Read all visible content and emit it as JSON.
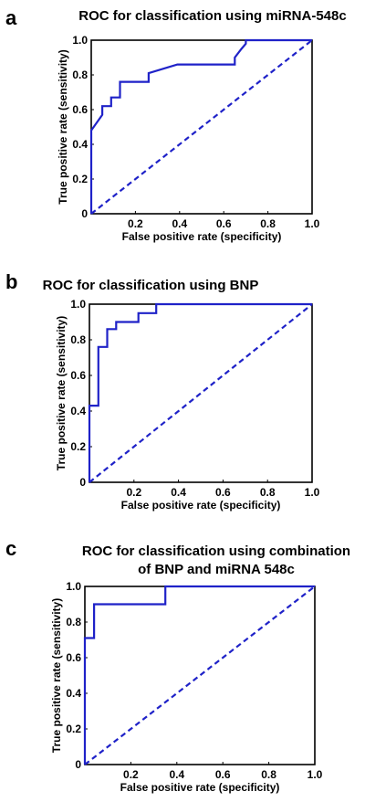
{
  "colors": {
    "roc": "#1f22c8",
    "chance": "#1f22c8",
    "axes": "#000000"
  },
  "chart_data": [
    {
      "type": "line",
      "panel": "a",
      "title": [
        "ROC for classification using miRNA-548c"
      ],
      "xlabel": "False positive rate (specificity)",
      "ylabel": "True positive rate (sensitivity)",
      "xlim": [
        0,
        1
      ],
      "ylim": [
        0,
        1
      ],
      "xticks": [
        "0.2",
        "0.4",
        "0.6",
        "0.8",
        "1.0"
      ],
      "yticks": [
        "0",
        "0.2",
        "0.4",
        "0.6",
        "0.8",
        "1.0"
      ],
      "grid": false,
      "series": [
        {
          "style": "solid",
          "x": [
            0,
            0,
            0.05,
            0.05,
            0.09,
            0.09,
            0.13,
            0.13,
            0.26,
            0.26,
            0.39,
            0.65,
            0.65,
            0.68,
            0.68,
            0.7,
            0.7,
            1.0
          ],
          "y": [
            0,
            0.48,
            0.57,
            0.62,
            0.62,
            0.67,
            0.67,
            0.76,
            0.76,
            0.81,
            0.86,
            0.86,
            0.9,
            0.95,
            0.95,
            0.98,
            1.0,
            1.0
          ]
        },
        {
          "style": "dashed",
          "x": [
            0,
            1
          ],
          "y": [
            0,
            1
          ]
        }
      ]
    },
    {
      "type": "line",
      "panel": "b",
      "title": [
        "ROC for classification using BNP"
      ],
      "xlabel": "False positive rate (specificity)",
      "ylabel": "True positive rate (sensitivity)",
      "xlim": [
        0,
        1
      ],
      "ylim": [
        0,
        1
      ],
      "xticks": [
        "0.2",
        "0.4",
        "0.6",
        "0.8",
        "1.0"
      ],
      "yticks": [
        "0",
        "0.2",
        "0.4",
        "0.6",
        "0.8",
        "1.0"
      ],
      "grid": false,
      "series": [
        {
          "style": "solid",
          "x": [
            0,
            0,
            0.04,
            0.04,
            0.08,
            0.08,
            0.12,
            0.12,
            0.17,
            0.17,
            0.22,
            0.22,
            0.3,
            0.3,
            1.0
          ],
          "y": [
            0,
            0.43,
            0.43,
            0.76,
            0.76,
            0.86,
            0.86,
            0.9,
            0.9,
            0.9,
            0.9,
            0.95,
            0.95,
            1.0,
            1.0
          ]
        },
        {
          "style": "dashed",
          "x": [
            0,
            1
          ],
          "y": [
            0,
            1
          ]
        }
      ]
    },
    {
      "type": "line",
      "panel": "c",
      "title": [
        "ROC for classification using combination",
        "of BNP and miRNA 548c"
      ],
      "xlabel": "False positive rate (specificity)",
      "ylabel": "True positive rate (sensitivity)",
      "xlim": [
        0,
        1
      ],
      "ylim": [
        0,
        1
      ],
      "xticks": [
        "0.2",
        "0.4",
        "0.6",
        "0.8",
        "1.0"
      ],
      "yticks": [
        "0",
        "0.2",
        "0.4",
        "0.6",
        "0.8",
        "1.0"
      ],
      "grid": false,
      "series": [
        {
          "style": "solid",
          "x": [
            0,
            0,
            0.04,
            0.04,
            0.35,
            0.35,
            1.0
          ],
          "y": [
            0,
            0.71,
            0.71,
            0.9,
            0.9,
            1.0,
            1.0
          ]
        },
        {
          "style": "dashed",
          "x": [
            0,
            1
          ],
          "y": [
            0,
            1
          ]
        }
      ]
    }
  ]
}
